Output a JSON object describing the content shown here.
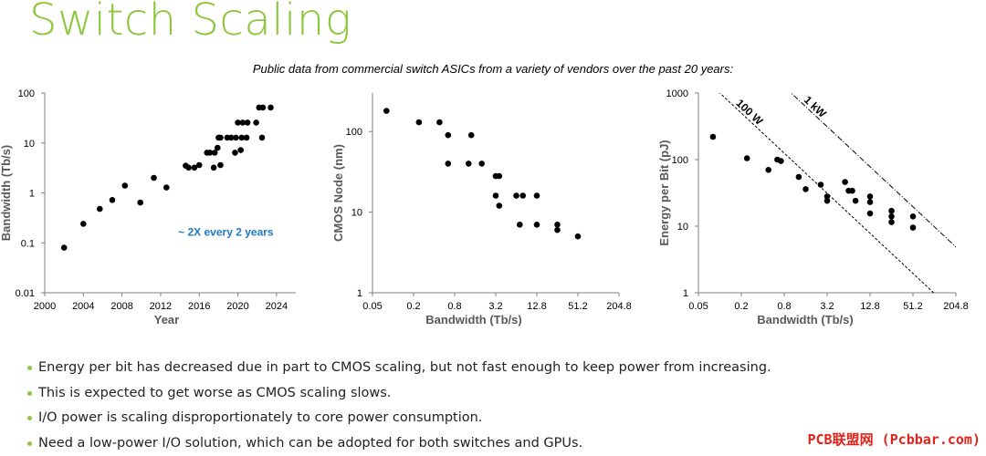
{
  "title": "Switch Scaling",
  "subtitle": "Public data from commercial switch ASICs from a variety of vendors over the past 20 years:",
  "bullets": [
    "Energy per bit has decreased due in part to CMOS scaling, but not fast enough to keep power from increasing.",
    "This is expected to get worse as CMOS scaling slows.",
    "I/O power is scaling disproportionately to core power consumption.",
    "Need a low-power I/O solution, which can be adopted for both switches and GPUs."
  ],
  "watermark": "PCB联盟网 (Pcbbar.com)",
  "colors": {
    "title": "#8DC63F",
    "annotation": "#1F78C1",
    "watermark": "#E2231A",
    "points": "#000000"
  },
  "chart_data": [
    {
      "type": "scatter",
      "xscale": "linear",
      "yscale": "log",
      "xlabel": "Year",
      "ylabel": "Bandwidth (Tb/s)",
      "xlim": [
        2000,
        2026
      ],
      "ylim": [
        0.01,
        100
      ],
      "xticks": [
        "2000",
        "2004",
        "2008",
        "2012",
        "2016",
        "2020",
        "2024"
      ],
      "yticks": [
        "0.01",
        "0.1",
        "1",
        "10",
        "100"
      ],
      "grid": false,
      "annotations": [
        {
          "text": "~ 2X every 2 years",
          "x": 2018,
          "y": 0.1
        }
      ],
      "points": [
        [
          2002,
          0.08
        ],
        [
          2004,
          0.24
        ],
        [
          2005.7,
          0.48
        ],
        [
          2007,
          0.72
        ],
        [
          2008.3,
          1.4
        ],
        [
          2009.9,
          0.64
        ],
        [
          2011.3,
          2.0
        ],
        [
          2012.6,
          1.28
        ],
        [
          2014.6,
          3.5
        ],
        [
          2014.9,
          3.2
        ],
        [
          2015.5,
          3.2
        ],
        [
          2016.0,
          3.6
        ],
        [
          2016.8,
          6.4
        ],
        [
          2017.1,
          6.4
        ],
        [
          2017.5,
          3.2
        ],
        [
          2017.6,
          6.4
        ],
        [
          2017.9,
          8.0
        ],
        [
          2018.0,
          12.8
        ],
        [
          2018.2,
          12.8
        ],
        [
          2018.2,
          3.6
        ],
        [
          2018.9,
          12.8
        ],
        [
          2019.3,
          12.8
        ],
        [
          2019.7,
          6.4
        ],
        [
          2019.8,
          12.8
        ],
        [
          2020.0,
          25.6
        ],
        [
          2020.3,
          7.2
        ],
        [
          2020.4,
          12.8
        ],
        [
          2020.5,
          25.6
        ],
        [
          2020.9,
          12.8
        ],
        [
          2021.0,
          25.6
        ],
        [
          2021.9,
          25.6
        ],
        [
          2022.2,
          51.2
        ],
        [
          2022.5,
          12.8
        ],
        [
          2022.6,
          51.2
        ],
        [
          2023.4,
          51.2
        ]
      ]
    },
    {
      "type": "scatter",
      "xscale": "log2",
      "yscale": "log",
      "xlabel": "Bandwidth (Tb/s)",
      "ylabel": "CMOS Node (nm)",
      "xlim": [
        0.05,
        204.8
      ],
      "ylim": [
        1,
        300
      ],
      "xticks": [
        "0.05",
        "0.2",
        "0.8",
        "3.2",
        "12.8",
        "51.2",
        "204.8"
      ],
      "yticks": [
        "1",
        "10",
        "100"
      ],
      "grid": false,
      "points": [
        [
          0.08,
          180
        ],
        [
          0.24,
          130
        ],
        [
          0.48,
          130
        ],
        [
          0.64,
          90
        ],
        [
          0.64,
          40
        ],
        [
          1.28,
          40
        ],
        [
          1.4,
          90
        ],
        [
          2.0,
          40
        ],
        [
          3.2,
          28
        ],
        [
          3.2,
          16
        ],
        [
          3.6,
          28
        ],
        [
          3.6,
          12
        ],
        [
          6.4,
          16
        ],
        [
          7.2,
          7
        ],
        [
          8.0,
          16
        ],
        [
          12.8,
          16
        ],
        [
          12.8,
          7
        ],
        [
          25.6,
          7
        ],
        [
          25.6,
          6
        ],
        [
          51.2,
          5
        ]
      ]
    },
    {
      "type": "scatter",
      "xscale": "log2",
      "yscale": "log",
      "xlabel": "Bandwidth (Tb/s)",
      "ylabel": "Energy per Bit (pJ)",
      "xlim": [
        0.05,
        204.8
      ],
      "ylim": [
        1,
        1000
      ],
      "xticks": [
        "0.05",
        "0.2",
        "0.8",
        "3.2",
        "12.8",
        "51.2",
        "204.8"
      ],
      "yticks": [
        "1",
        "10",
        "100",
        "1000"
      ],
      "grid": false,
      "lines": [
        {
          "label": "100 W",
          "style": "dashed",
          "power_w": 100
        },
        {
          "label": "1 kW",
          "style": "dash-dot",
          "power_w": 1000
        }
      ],
      "points": [
        [
          0.08,
          220
        ],
        [
          0.24,
          105
        ],
        [
          0.48,
          70
        ],
        [
          0.64,
          100
        ],
        [
          0.72,
          95
        ],
        [
          1.28,
          55
        ],
        [
          1.6,
          36
        ],
        [
          2.6,
          42
        ],
        [
          3.2,
          28
        ],
        [
          3.2,
          24
        ],
        [
          5.7,
          46
        ],
        [
          6.4,
          34
        ],
        [
          7.2,
          34
        ],
        [
          8.0,
          24
        ],
        [
          12.8,
          28
        ],
        [
          12.8,
          23
        ],
        [
          12.8,
          15.5
        ],
        [
          25.6,
          17
        ],
        [
          25.6,
          14
        ],
        [
          25.6,
          11.5
        ],
        [
          51.2,
          14
        ],
        [
          51.2,
          9.5
        ]
      ]
    }
  ]
}
